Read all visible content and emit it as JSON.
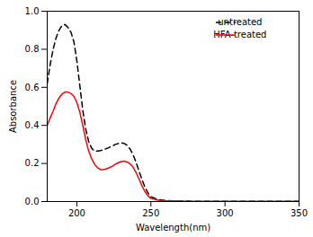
{
  "chart_data": {
    "type": "line",
    "xlabel": "Wavelength(nm)",
    "ylabel": "Absorbance",
    "xlim": [
      180,
      350
    ],
    "ylim": [
      0,
      1.0
    ],
    "xticks": [
      200,
      250,
      300,
      350
    ],
    "yticks": [
      {
        "value": 0.0,
        "label": "0.0"
      },
      0.2,
      0.4,
      0.6,
      0.8,
      {
        "value": 1.0,
        "label": "1.0"
      }
    ],
    "grid": false,
    "legend": "upper right",
    "x": [
      180,
      182,
      184,
      186,
      188,
      190,
      192,
      194,
      196,
      198,
      200,
      202,
      204,
      206,
      208,
      210,
      212,
      214,
      216,
      218,
      220,
      222,
      224,
      226,
      228,
      230,
      232,
      234,
      236,
      238,
      240,
      242,
      244,
      246,
      248,
      250,
      255,
      260,
      265,
      270,
      275,
      280,
      290,
      300,
      310,
      320,
      330,
      340,
      350
    ],
    "series": [
      {
        "name": "untreated",
        "color": "#000000",
        "line_style": "dashed",
        "values": [
          0.62,
          0.72,
          0.8,
          0.86,
          0.9,
          0.925,
          0.93,
          0.915,
          0.89,
          0.84,
          0.74,
          0.61,
          0.48,
          0.38,
          0.315,
          0.28,
          0.265,
          0.265,
          0.268,
          0.272,
          0.278,
          0.285,
          0.292,
          0.3,
          0.305,
          0.308,
          0.305,
          0.295,
          0.275,
          0.245,
          0.205,
          0.16,
          0.115,
          0.075,
          0.045,
          0.025,
          0.01,
          0.005,
          0.003,
          0.002,
          0.002,
          0.001,
          0.001,
          0.001,
          0.001,
          0.001,
          0.001,
          0.001,
          0.001
        ]
      },
      {
        "name": "HFA-treated",
        "color": "#ff0000",
        "line_style": "solid",
        "values": [
          0.4,
          0.44,
          0.475,
          0.515,
          0.545,
          0.565,
          0.575,
          0.575,
          0.568,
          0.553,
          0.52,
          0.47,
          0.4,
          0.325,
          0.265,
          0.225,
          0.195,
          0.178,
          0.168,
          0.168,
          0.172,
          0.178,
          0.186,
          0.196,
          0.204,
          0.21,
          0.212,
          0.208,
          0.198,
          0.18,
          0.152,
          0.118,
          0.082,
          0.052,
          0.03,
          0.016,
          0.007,
          0.004,
          0.003,
          0.002,
          0.001,
          0.001,
          0.001,
          0.001,
          0.001,
          0.001,
          0.001,
          0.001,
          0.001
        ]
      }
    ]
  }
}
